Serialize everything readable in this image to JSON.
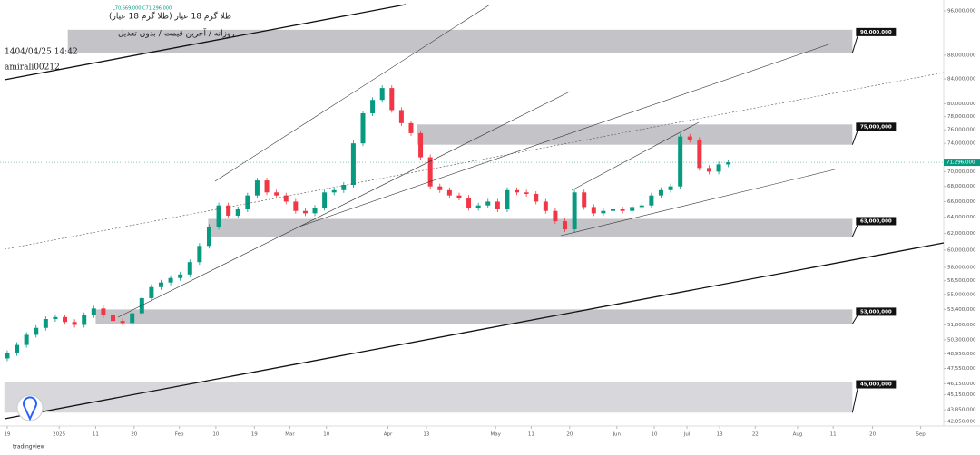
{
  "header": {
    "symbol": "طلا گرم 18 عیار (طلا گرم 18 عیار)",
    "ohlc": "L70,669,000 C71,296,000",
    "settings": "روزانه / آخرین قیمت / بدون تعدیل",
    "timestamp": "1404/04/25 14:42",
    "author": "amirali00212",
    "brand": "tradingview"
  },
  "chart_data": {
    "type": "candlestick",
    "log_scale": true,
    "up_color": "#089981",
    "down_color": "#f23645",
    "open": [
      48500000,
      49000000,
      49800000,
      50800000,
      51500000,
      52400000,
      52600000,
      52100000,
      51800000,
      52800000,
      53500000,
      52800000,
      52200000,
      52000000,
      53000000,
      54600000,
      55800000,
      56300000,
      56800000,
      57200000,
      58600000,
      60500000,
      62800000,
      65500000,
      64200000,
      65000000,
      66800000,
      68800000,
      67200000,
      66800000,
      66000000,
      64800000,
      64500000,
      65200000,
      67200000,
      67500000,
      68200000,
      74000000,
      78500000,
      80600000,
      82500000,
      79000000,
      77000000,
      75500000,
      72000000,
      68000000,
      67500000,
      66800000,
      66500000,
      65200000,
      65500000,
      66000000,
      65000000,
      67500000,
      67200000,
      67000000,
      66000000,
      64800000,
      63500000,
      62500000,
      67200000,
      65300000,
      64500000,
      64800000,
      65000000,
      64800000,
      65300000,
      65500000,
      66800000,
      67500000,
      68000000,
      75000000,
      74500000,
      70500000,
      70000000,
      71000000
    ],
    "close": [
      49000000,
      49800000,
      50800000,
      51500000,
      52400000,
      52600000,
      52100000,
      51800000,
      52800000,
      53500000,
      52800000,
      52200000,
      52000000,
      53000000,
      54600000,
      55800000,
      56300000,
      56800000,
      57200000,
      58600000,
      60500000,
      62800000,
      65500000,
      64200000,
      65000000,
      66800000,
      68800000,
      67200000,
      66800000,
      66000000,
      64800000,
      64500000,
      65200000,
      67200000,
      67500000,
      68200000,
      74000000,
      78500000,
      80600000,
      82500000,
      79000000,
      77000000,
      75500000,
      72000000,
      68000000,
      67500000,
      66800000,
      66500000,
      65200000,
      65500000,
      66000000,
      65000000,
      67500000,
      67200000,
      67000000,
      66000000,
      64800000,
      63500000,
      62500000,
      67200000,
      65300000,
      64500000,
      64800000,
      65000000,
      64800000,
      65300000,
      65500000,
      66800000,
      67500000,
      68000000,
      75000000,
      74500000,
      70500000,
      70000000,
      71000000,
      71296000
    ],
    "last_price": {
      "value": 71296000,
      "label": "71,296,000"
    },
    "zones": [
      {
        "label": "90,000,000",
        "high": 92500000,
        "low": 88400000,
        "start": 6.3,
        "color": "#c4c4c8"
      },
      {
        "label": "75,000,000",
        "high": 76800000,
        "low": 73800000,
        "start": 42.6,
        "color": "#c4c4c8"
      },
      {
        "label": "63,000,000",
        "high": 63800000,
        "low": 61600000,
        "start": 20.9,
        "color": "#c4c4c8"
      },
      {
        "label": "53,000,000",
        "high": 53400000,
        "low": 51900000,
        "start": 9.2,
        "color": "#c4c4c8"
      },
      {
        "label": "45,000,000",
        "high": 46300000,
        "low": 43600000,
        "start": -0.3,
        "color": "#d8d8dc"
      }
    ],
    "zone_end": 87.9,
    "xlim": [
      -0.75,
      97.4
    ],
    "xticks": [
      {
        "value": 0,
        "label": "19"
      },
      {
        "value": 5.4,
        "label": "2025"
      },
      {
        "value": 9.2,
        "label": "11"
      },
      {
        "value": 13.2,
        "label": "20"
      },
      {
        "value": 17.9,
        "label": "Feb"
      },
      {
        "value": 21.7,
        "label": "10"
      },
      {
        "value": 25.7,
        "label": "19"
      },
      {
        "value": 29.4,
        "label": "Mar"
      },
      {
        "value": 33.2,
        "label": "10"
      },
      {
        "value": 39.6,
        "label": "Apr"
      },
      {
        "value": 43.6,
        "label": "13"
      },
      {
        "value": 50.8,
        "label": "May"
      },
      {
        "value": 54.5,
        "label": "11"
      },
      {
        "value": 58.5,
        "label": "20"
      },
      {
        "value": 63.4,
        "label": "Jun"
      },
      {
        "value": 67.3,
        "label": "10"
      },
      {
        "value": 70.7,
        "label": "Jul"
      },
      {
        "value": 74.1,
        "label": "13"
      },
      {
        "value": 77.8,
        "label": "22"
      },
      {
        "value": 82.2,
        "label": "Aug"
      },
      {
        "value": 85.9,
        "label": "11"
      },
      {
        "value": 90,
        "label": "20"
      },
      {
        "value": 95,
        "label": "Sep"
      }
    ],
    "ylim": [
      42850000,
      96000000
    ],
    "yticks": [
      {
        "value": 96000000,
        "label": "96,000,000"
      },
      {
        "value": 88000000,
        "label": "88,000,000"
      },
      {
        "value": 84000000,
        "label": "84,000,000"
      },
      {
        "value": 80000000,
        "label": "80,000,000"
      },
      {
        "value": 78000000,
        "label": "78,000,000"
      },
      {
        "value": 76000000,
        "label": "76,000,000"
      },
      {
        "value": 74000000,
        "label": "74,000,000"
      },
      {
        "value": 70000000,
        "label": "70,000,000"
      },
      {
        "value": 68000000,
        "label": "68,000,000"
      },
      {
        "value": 66000000,
        "label": "66,000,000"
      },
      {
        "value": 64000000,
        "label": "64,000,000"
      },
      {
        "value": 62000000,
        "label": "62,000,000"
      },
      {
        "value": 60000000,
        "label": "60,000,000"
      },
      {
        "value": 58000000,
        "label": "58,000,000"
      },
      {
        "value": 56500000,
        "label": "56,500,000"
      },
      {
        "value": 55000000,
        "label": "55,000,000"
      },
      {
        "value": 53400000,
        "label": "53,400,000"
      },
      {
        "value": 51800000,
        "label": "51,800,000"
      },
      {
        "value": 50300000,
        "label": "50,300,000"
      },
      {
        "value": 48950000,
        "label": "48,950,000"
      },
      {
        "value": 47550000,
        "label": "47,550,000"
      },
      {
        "value": 46150000,
        "label": "46,150,000"
      },
      {
        "value": 45150000,
        "label": "45,150,000"
      },
      {
        "value": 43850000,
        "label": "43,850,000"
      },
      {
        "value": 42850000,
        "label": "42,850,000"
      }
    ]
  }
}
